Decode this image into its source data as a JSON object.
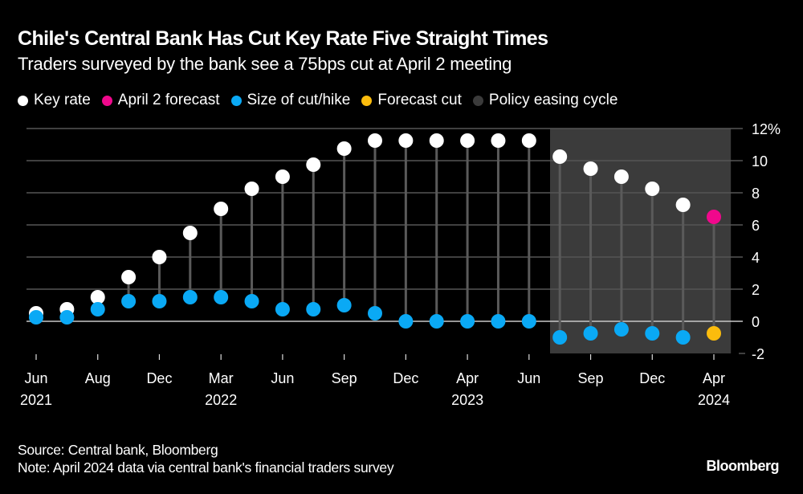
{
  "header": {
    "title": "Chile's Central Bank Has Cut Key Rate Five Straight Times",
    "subtitle": "Traders surveyed by the bank see a 75bps cut at April 2 meeting"
  },
  "legend": [
    {
      "label": "Key rate",
      "color": "#ffffff"
    },
    {
      "label": "April 2 forecast",
      "color": "#f0088c"
    },
    {
      "label": "Size of cut/hike",
      "color": "#0aa9f5"
    },
    {
      "label": "Forecast cut",
      "color": "#fbbc0d"
    },
    {
      "label": "Policy easing cycle",
      "color": "#3b3b3b"
    }
  ],
  "footer": {
    "source": "Source: Central bank, Bloomberg",
    "note": "Note: April 2024 data via central bank's financial traders survey",
    "brand": "Bloomberg"
  },
  "chart_data": {
    "type": "scatter",
    "title": "Chile's Central Bank Has Cut Key Rate Five Straight Times",
    "subtitle": "Traders surveyed by the bank see a 75bps cut at April 2 meeting",
    "xlabel": "",
    "ylabel": "",
    "ylim": [
      -2,
      12
    ],
    "y_ticks": [
      12,
      10,
      8,
      6,
      4,
      2,
      0,
      -2
    ],
    "y_tick_labels": [
      "12%",
      "10",
      "8",
      "6",
      "4",
      "2",
      "0",
      "-2"
    ],
    "y_axis_side": "right",
    "grid": true,
    "legend_position": "top-left",
    "x": [
      "Jun 2021",
      "Jul 2021",
      "Aug 2021",
      "Oct 2021",
      "Dec 2021",
      "Jan 2022",
      "Mar 2022",
      "May 2022",
      "Jun 2022",
      "Jul 2022",
      "Sep 2022",
      "Oct 2022",
      "Dec 2022",
      "Jan 2023",
      "Apr 2023",
      "May 2023",
      "Jun 2023",
      "Jul 2023",
      "Sep 2023",
      "Oct 2023",
      "Dec 2023",
      "Jan 2024",
      "Apr 2024"
    ],
    "x_tick_labels": [
      {
        "index": 0,
        "month": "Jun",
        "year": "2021"
      },
      {
        "index": 2,
        "month": "Aug",
        "year": ""
      },
      {
        "index": 4,
        "month": "Dec",
        "year": ""
      },
      {
        "index": 6,
        "month": "Mar",
        "year": "2022"
      },
      {
        "index": 8,
        "month": "Jun",
        "year": ""
      },
      {
        "index": 10,
        "month": "Sep",
        "year": ""
      },
      {
        "index": 12,
        "month": "Dec",
        "year": ""
      },
      {
        "index": 14,
        "month": "Apr",
        "year": "2023"
      },
      {
        "index": 16,
        "month": "Jun",
        "year": ""
      },
      {
        "index": 18,
        "month": "Sep",
        "year": ""
      },
      {
        "index": 20,
        "month": "Dec",
        "year": ""
      },
      {
        "index": 22,
        "month": "Apr",
        "year": "2024"
      }
    ],
    "series": [
      {
        "name": "Key rate",
        "color": "#ffffff",
        "values": [
          0.5,
          0.75,
          1.5,
          2.75,
          4.0,
          5.5,
          7.0,
          8.25,
          9.0,
          9.75,
          10.75,
          11.25,
          11.25,
          11.25,
          11.25,
          11.25,
          11.25,
          10.25,
          9.5,
          9.0,
          8.25,
          7.25,
          null
        ]
      },
      {
        "name": "April 2 forecast",
        "color": "#f0088c",
        "values": [
          null,
          null,
          null,
          null,
          null,
          null,
          null,
          null,
          null,
          null,
          null,
          null,
          null,
          null,
          null,
          null,
          null,
          null,
          null,
          null,
          null,
          null,
          6.5
        ]
      },
      {
        "name": "Size of cut/hike",
        "color": "#0aa9f5",
        "values": [
          0.25,
          0.25,
          0.75,
          1.25,
          1.25,
          1.5,
          1.5,
          1.25,
          0.75,
          0.75,
          1.0,
          0.5,
          0,
          0,
          0,
          0,
          0,
          -1.0,
          -0.75,
          -0.5,
          -0.75,
          -1.0,
          null
        ]
      },
      {
        "name": "Forecast cut",
        "color": "#fbbc0d",
        "values": [
          null,
          null,
          null,
          null,
          null,
          null,
          null,
          null,
          null,
          null,
          null,
          null,
          null,
          null,
          null,
          null,
          null,
          null,
          null,
          null,
          null,
          null,
          -0.75
        ]
      }
    ],
    "shaded_region": {
      "name": "Policy easing cycle",
      "color": "#3b3b3b",
      "from": "Jul 2023",
      "to": "Apr 2024"
    }
  }
}
